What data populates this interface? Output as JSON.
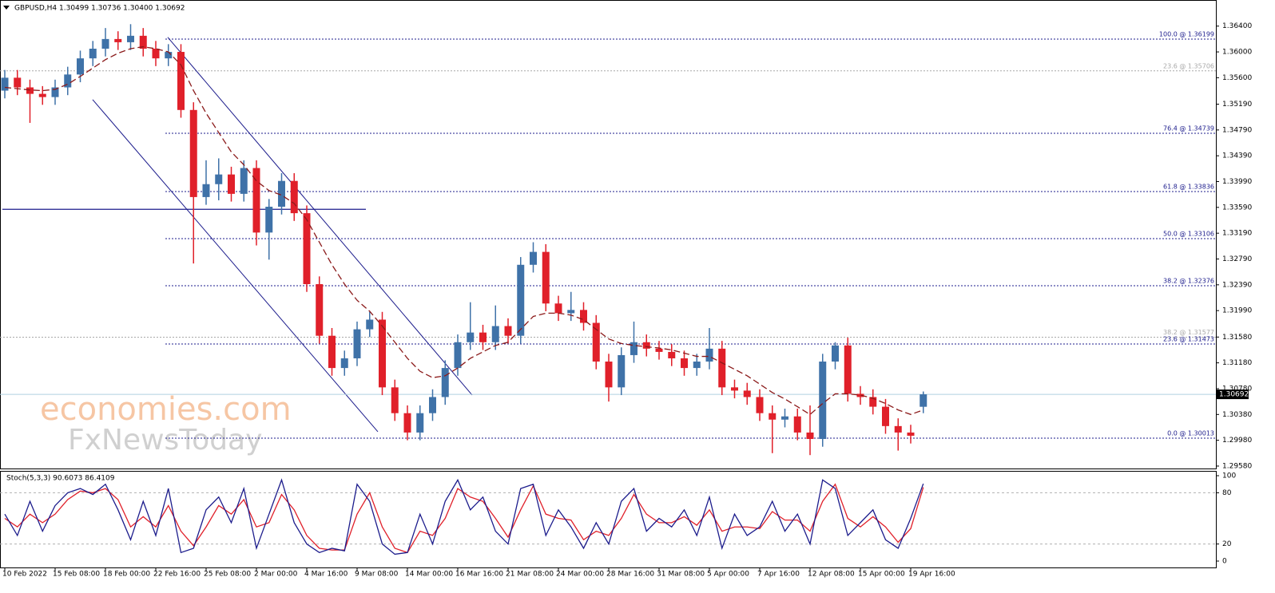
{
  "chart_data": {
    "type": "candlestick",
    "title": "GBPUSD,H4  1.30499 1.30736 1.30400 1.30692",
    "up_color": "#3f72a8",
    "down_color": "#e0202a",
    "categories": [
      "10 Feb 2022",
      null,
      null,
      null,
      "15 Feb 08:00",
      null,
      null,
      null,
      "18 Feb 00:00",
      null,
      null,
      null,
      "22 Feb 16:00",
      null,
      null,
      null,
      "25 Feb 08:00",
      null,
      null,
      null,
      "2 Mar 00:00",
      null,
      null,
      null,
      "4 Mar 16:00",
      null,
      null,
      null,
      "9 Mar 08:00",
      null,
      null,
      null,
      "14 Mar 00:00",
      null,
      null,
      null,
      "16 Mar 16:00",
      null,
      null,
      null,
      "21 Mar 08:00",
      null,
      null,
      null,
      "24 Mar 00:00",
      null,
      null,
      null,
      "28 Mar 16:00",
      null,
      null,
      null,
      "31 Mar 08:00",
      null,
      null,
      null,
      "5 Apr 00:00",
      null,
      null,
      null,
      "7 Apr 16:00",
      null,
      null,
      null,
      "12 Apr 08:00",
      null,
      null,
      null,
      "15 Apr 00:00",
      null,
      null,
      null,
      "19 Apr 16:00",
      null
    ],
    "candles": [
      [
        1.354,
        1.3572,
        1.3528,
        1.356
      ],
      [
        1.356,
        1.3572,
        1.3533,
        1.3545
      ],
      [
        1.3545,
        1.3557,
        1.349,
        1.3535
      ],
      [
        1.3535,
        1.3547,
        1.3518,
        1.353
      ],
      [
        1.353,
        1.3557,
        1.3518,
        1.3545
      ],
      [
        1.3545,
        1.3577,
        1.3533,
        1.3565
      ],
      [
        1.3565,
        1.3602,
        1.3553,
        1.359
      ],
      [
        1.359,
        1.3617,
        1.3578,
        1.3605
      ],
      [
        1.3605,
        1.3637,
        1.3593,
        1.362
      ],
      [
        1.362,
        1.3632,
        1.3603,
        1.3615
      ],
      [
        1.3615,
        1.3643,
        1.3603,
        1.3625
      ],
      [
        1.3625,
        1.3637,
        1.3593,
        1.3605
      ],
      [
        1.3605,
        1.3617,
        1.3578,
        1.359
      ],
      [
        1.359,
        1.3612,
        1.3578,
        1.36
      ],
      [
        1.36,
        1.3612,
        1.3498,
        1.351
      ],
      [
        1.351,
        1.3522,
        1.3272,
        1.3375
      ],
      [
        1.3375,
        1.3432,
        1.3363,
        1.3395
      ],
      [
        1.3395,
        1.3435,
        1.337,
        1.341
      ],
      [
        1.341,
        1.3422,
        1.3368,
        1.338
      ],
      [
        1.338,
        1.3432,
        1.3368,
        1.342
      ],
      [
        1.342,
        1.3432,
        1.33,
        1.332
      ],
      [
        1.332,
        1.3372,
        1.3278,
        1.336
      ],
      [
        1.336,
        1.3412,
        1.3348,
        1.34
      ],
      [
        1.34,
        1.3412,
        1.3338,
        1.335
      ],
      [
        1.335,
        1.3362,
        1.3228,
        1.324
      ],
      [
        1.324,
        1.3252,
        1.3148,
        1.316
      ],
      [
        1.316,
        1.3172,
        1.3098,
        1.311
      ],
      [
        1.311,
        1.3137,
        1.3098,
        1.3125
      ],
      [
        1.3125,
        1.3182,
        1.3113,
        1.317
      ],
      [
        1.317,
        1.3197,
        1.3158,
        1.3185
      ],
      [
        1.3185,
        1.3197,
        1.3068,
        1.308
      ],
      [
        1.308,
        1.3092,
        1.3028,
        1.304
      ],
      [
        1.304,
        1.3052,
        1.2998,
        1.301
      ],
      [
        1.301,
        1.3052,
        1.2998,
        1.304
      ],
      [
        1.304,
        1.3077,
        1.3028,
        1.3065
      ],
      [
        1.3065,
        1.3122,
        1.3053,
        1.311
      ],
      [
        1.311,
        1.3162,
        1.3098,
        1.315
      ],
      [
        1.315,
        1.3212,
        1.3138,
        1.3165
      ],
      [
        1.3165,
        1.3177,
        1.3138,
        1.315
      ],
      [
        1.315,
        1.3207,
        1.3138,
        1.3175
      ],
      [
        1.3175,
        1.3187,
        1.3148,
        1.316
      ],
      [
        1.316,
        1.3282,
        1.3148,
        1.327
      ],
      [
        1.327,
        1.3305,
        1.3258,
        1.329
      ],
      [
        1.329,
        1.3302,
        1.3198,
        1.321
      ],
      [
        1.321,
        1.3222,
        1.3183,
        1.3195
      ],
      [
        1.3195,
        1.3228,
        1.3183,
        1.32
      ],
      [
        1.32,
        1.3212,
        1.3168,
        1.318
      ],
      [
        1.318,
        1.3192,
        1.3108,
        1.312
      ],
      [
        1.312,
        1.3132,
        1.3058,
        1.308
      ],
      [
        1.308,
        1.3142,
        1.3068,
        1.313
      ],
      [
        1.313,
        1.3182,
        1.3118,
        1.315
      ],
      [
        1.315,
        1.3162,
        1.3128,
        1.314
      ],
      [
        1.314,
        1.3152,
        1.3123,
        1.3135
      ],
      [
        1.3135,
        1.3147,
        1.3113,
        1.3125
      ],
      [
        1.3125,
        1.3137,
        1.3098,
        1.311
      ],
      [
        1.311,
        1.3132,
        1.3098,
        1.312
      ],
      [
        1.312,
        1.3172,
        1.3108,
        1.314
      ],
      [
        1.314,
        1.3152,
        1.3068,
        1.308
      ],
      [
        1.308,
        1.3092,
        1.3063,
        1.3075
      ],
      [
        1.3075,
        1.3087,
        1.3053,
        1.3065
      ],
      [
        1.3065,
        1.3077,
        1.3028,
        1.304
      ],
      [
        1.304,
        1.3052,
        1.2978,
        1.303
      ],
      [
        1.303,
        1.3047,
        1.3018,
        1.3035
      ],
      [
        1.3035,
        1.3047,
        1.2998,
        1.301
      ],
      [
        1.301,
        1.3052,
        1.2975,
        1.3
      ],
      [
        1.3,
        1.3132,
        1.2988,
        1.312
      ],
      [
        1.312,
        1.315,
        1.3108,
        1.3145
      ],
      [
        1.3145,
        1.3157,
        1.3058,
        1.307
      ],
      [
        1.307,
        1.3082,
        1.3053,
        1.3065
      ],
      [
        1.3065,
        1.3077,
        1.3038,
        1.305
      ],
      [
        1.305,
        1.3062,
        1.3008,
        1.302
      ],
      [
        1.302,
        1.3032,
        1.2982,
        1.301
      ],
      [
        1.301,
        1.3022,
        1.2993,
        1.3005
      ],
      [
        1.30499,
        1.30736,
        1.304,
        1.30692
      ]
    ],
    "ma": {
      "color": "#8b1a1a",
      "values": [
        1.3545,
        1.3543,
        1.3541,
        1.354,
        1.3542,
        1.355,
        1.3562,
        1.3575,
        1.3588,
        1.3598,
        1.3605,
        1.3608,
        1.3605,
        1.36,
        1.358,
        1.354,
        1.3505,
        1.3475,
        1.3445,
        1.3425,
        1.34,
        1.3385,
        1.3378,
        1.3365,
        1.334,
        1.3305,
        1.327,
        1.324,
        1.3215,
        1.3198,
        1.3175,
        1.315,
        1.3125,
        1.3105,
        1.3095,
        1.3098,
        1.311,
        1.3125,
        1.3135,
        1.3145,
        1.315,
        1.317,
        1.319,
        1.3195,
        1.3195,
        1.3192,
        1.3185,
        1.317,
        1.3155,
        1.3148,
        1.3145,
        1.3143,
        1.3141,
        1.3138,
        1.3133,
        1.3128,
        1.3128,
        1.3118,
        1.3108,
        1.3098,
        1.3085,
        1.3072,
        1.3062,
        1.305,
        1.3038,
        1.3055,
        1.307,
        1.307,
        1.3068,
        1.3063,
        1.3055,
        1.3045,
        1.3038,
        1.3045
      ]
    },
    "ylim": [
      1.2953,
      1.3678
    ],
    "yticks": [
      {
        "value": 1.364,
        "label": "1.36400"
      },
      {
        "value": 1.36,
        "label": "1.36000"
      },
      {
        "value": 1.356,
        "label": "1.35600"
      },
      {
        "value": 1.3519,
        "label": "1.35190"
      },
      {
        "value": 1.3479,
        "label": "1.34790"
      },
      {
        "value": 1.3439,
        "label": "1.34390"
      },
      {
        "value": 1.3399,
        "label": "1.33990"
      },
      {
        "value": 1.3359,
        "label": "1.33590"
      },
      {
        "value": 1.3319,
        "label": "1.33190"
      },
      {
        "value": 1.3279,
        "label": "1.32790"
      },
      {
        "value": 1.3239,
        "label": "1.32390"
      },
      {
        "value": 1.3199,
        "label": "1.31990"
      },
      {
        "value": 1.3158,
        "label": "1.31580"
      },
      {
        "value": 1.3118,
        "label": "1.31180"
      },
      {
        "value": 1.3078,
        "label": "1.30780"
      },
      {
        "value": 1.3038,
        "label": "1.30380"
      },
      {
        "value": 1.2998,
        "label": "1.29980"
      },
      {
        "value": 1.2958,
        "label": "1.29580"
      }
    ],
    "levels": [
      {
        "value": 1.36199,
        "label": "100.0 @ 1.36199",
        "color": "#1c1c8c"
      },
      {
        "value": 1.35706,
        "label": "23.6 @ 1.35706",
        "color": "#a8a8a8"
      },
      {
        "value": 1.34739,
        "label": "76.4 @ 1.34739",
        "color": "#1c1c8c"
      },
      {
        "value": 1.33836,
        "label": "61.8 @ 1.33836",
        "color": "#1c1c8c"
      },
      {
        "value": 1.33106,
        "label": "50.0 @ 1.33106",
        "color": "#1c1c8c"
      },
      {
        "value": 1.32376,
        "label": "38.2 @ 1.32376",
        "color": "#1c1c8c"
      },
      {
        "value": 1.31577,
        "label": "38.2 @ 1.31577",
        "color": "#a8a8a8"
      },
      {
        "value": 1.31473,
        "label": "23.6 @ 1.31473",
        "color": "#1c1c8c"
      },
      {
        "value": 1.30013,
        "label": "0.0 @ 1.30013",
        "color": "#1c1c8c"
      }
    ],
    "trendlines": [
      [
        12.95,
        1.36227,
        37.14,
        1.30682
      ],
      [
        6.98,
        1.35261,
        29.65,
        1.30112
      ]
    ],
    "hline": 1.3356,
    "current_price": {
      "value": 1.30692,
      "label": "1.30692"
    },
    "watermark": [
      "economies.com",
      "FxNewsToday"
    ],
    "stoch": {
      "title": "Stoch(5,3,3) 90.6073 86.4109",
      "ylim": [
        -8.4,
        104.7
      ],
      "yticks": [
        100,
        80,
        20,
        0
      ],
      "levels": [
        80,
        20
      ],
      "series": [
        {
          "name": "%K",
          "color": "#1c1c8c",
          "values": [
            55,
            30,
            70,
            35,
            65,
            80,
            85,
            78,
            90,
            60,
            25,
            70,
            30,
            85,
            10,
            15,
            60,
            75,
            45,
            85,
            15,
            55,
            95,
            45,
            20,
            10,
            15,
            12,
            90,
            70,
            20,
            8,
            10,
            55,
            20,
            70,
            95,
            60,
            75,
            35,
            20,
            85,
            90,
            30,
            60,
            40,
            15,
            45,
            20,
            70,
            85,
            35,
            50,
            40,
            60,
            30,
            75,
            15,
            55,
            30,
            40,
            70,
            35,
            55,
            20,
            95,
            85,
            30,
            45,
            60,
            25,
            15,
            50,
            90.6073
          ]
        },
        {
          "name": "%D",
          "color": "#e0202a",
          "values": [
            50,
            40,
            55,
            45,
            55,
            72,
            82,
            80,
            85,
            72,
            40,
            52,
            40,
            65,
            35,
            18,
            40,
            65,
            55,
            72,
            40,
            45,
            78,
            60,
            30,
            15,
            13,
            13,
            55,
            80,
            40,
            15,
            10,
            35,
            30,
            50,
            85,
            75,
            70,
            50,
            28,
            60,
            88,
            55,
            50,
            48,
            25,
            35,
            30,
            50,
            78,
            55,
            45,
            45,
            52,
            42,
            60,
            35,
            40,
            40,
            38,
            58,
            48,
            48,
            35,
            70,
            90,
            50,
            40,
            52,
            40,
            22,
            38,
            86.4109
          ]
        }
      ]
    }
  }
}
